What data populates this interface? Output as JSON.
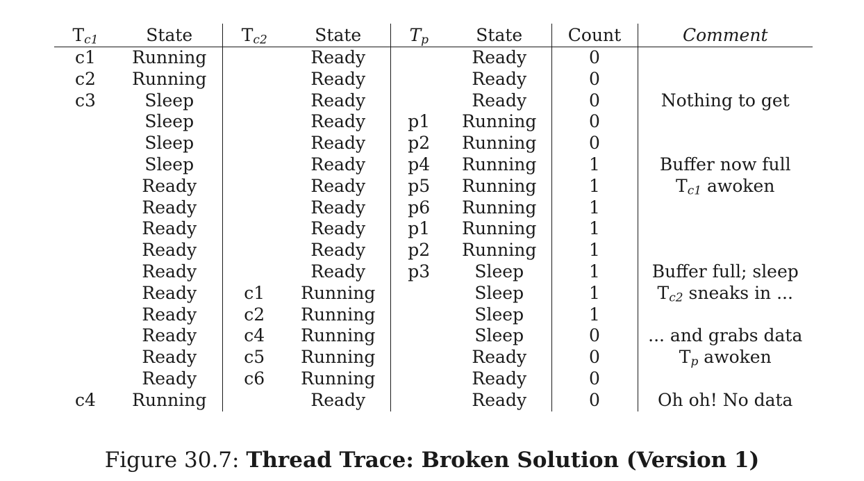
{
  "headers": {
    "tc1": {
      "main": "T",
      "sub": "c1"
    },
    "state1": "State",
    "tc2": {
      "main": "T",
      "sub": "c2"
    },
    "state2": "State",
    "tp": {
      "main": "T",
      "sub": "p"
    },
    "state3": "State",
    "count": "Count",
    "comment": "Comment"
  },
  "rows": [
    {
      "tc1": "c1",
      "s1": "Running",
      "tc2": "",
      "s2": "Ready",
      "tp": "",
      "s3": "Ready",
      "count": "0",
      "comment": ""
    },
    {
      "tc1": "c2",
      "s1": "Running",
      "tc2": "",
      "s2": "Ready",
      "tp": "",
      "s3": "Ready",
      "count": "0",
      "comment": ""
    },
    {
      "tc1": "c3",
      "s1": "Sleep",
      "tc2": "",
      "s2": "Ready",
      "tp": "",
      "s3": "Ready",
      "count": "0",
      "comment": "Nothing to get"
    },
    {
      "tc1": "",
      "s1": "Sleep",
      "tc2": "",
      "s2": "Ready",
      "tp": "p1",
      "s3": "Running",
      "count": "0",
      "comment": ""
    },
    {
      "tc1": "",
      "s1": "Sleep",
      "tc2": "",
      "s2": "Ready",
      "tp": "p2",
      "s3": "Running",
      "count": "0",
      "comment": ""
    },
    {
      "tc1": "",
      "s1": "Sleep",
      "tc2": "",
      "s2": "Ready",
      "tp": "p4",
      "s3": "Running",
      "count": "1",
      "comment": "Buffer now full"
    },
    {
      "tc1": "",
      "s1": "Ready",
      "tc2": "",
      "s2": "Ready",
      "tp": "p5",
      "s3": "Running",
      "count": "1",
      "comment": {
        "pre": "T",
        "sub": "c1",
        "post": " awoken"
      }
    },
    {
      "tc1": "",
      "s1": "Ready",
      "tc2": "",
      "s2": "Ready",
      "tp": "p6",
      "s3": "Running",
      "count": "1",
      "comment": ""
    },
    {
      "tc1": "",
      "s1": "Ready",
      "tc2": "",
      "s2": "Ready",
      "tp": "p1",
      "s3": "Running",
      "count": "1",
      "comment": ""
    },
    {
      "tc1": "",
      "s1": "Ready",
      "tc2": "",
      "s2": "Ready",
      "tp": "p2",
      "s3": "Running",
      "count": "1",
      "comment": ""
    },
    {
      "tc1": "",
      "s1": "Ready",
      "tc2": "",
      "s2": "Ready",
      "tp": "p3",
      "s3": "Sleep",
      "count": "1",
      "comment": "Buffer full; sleep"
    },
    {
      "tc1": "",
      "s1": "Ready",
      "tc2": "c1",
      "s2": "Running",
      "tp": "",
      "s3": "Sleep",
      "count": "1",
      "comment": {
        "pre": "T",
        "sub": "c2",
        "post": " sneaks in ..."
      }
    },
    {
      "tc1": "",
      "s1": "Ready",
      "tc2": "c2",
      "s2": "Running",
      "tp": "",
      "s3": "Sleep",
      "count": "1",
      "comment": ""
    },
    {
      "tc1": "",
      "s1": "Ready",
      "tc2": "c4",
      "s2": "Running",
      "tp": "",
      "s3": "Sleep",
      "count": "0",
      "comment": "... and grabs data"
    },
    {
      "tc1": "",
      "s1": "Ready",
      "tc2": "c5",
      "s2": "Running",
      "tp": "",
      "s3": "Ready",
      "count": "0",
      "comment": {
        "pre": "T",
        "sub": "p",
        "post": " awoken"
      }
    },
    {
      "tc1": "",
      "s1": "Ready",
      "tc2": "c6",
      "s2": "Running",
      "tp": "",
      "s3": "Ready",
      "count": "0",
      "comment": ""
    },
    {
      "tc1": "c4",
      "s1": "Running",
      "tc2": "",
      "s2": "Ready",
      "tp": "",
      "s3": "Ready",
      "count": "0",
      "comment": "Oh oh! No data"
    }
  ],
  "caption": {
    "label": "Figure 30.7: ",
    "title": "Thread Trace: Broken Solution (Version 1)"
  }
}
